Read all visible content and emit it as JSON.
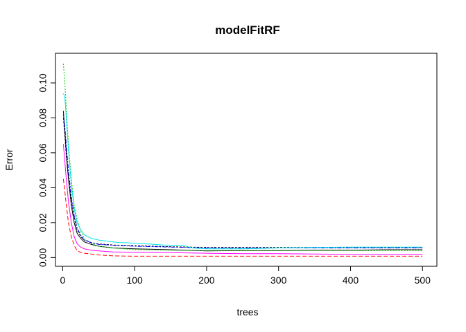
{
  "chart_data": {
    "type": "line",
    "title": "modelFitRF",
    "xlabel": "trees",
    "ylabel": "Error",
    "xlim": [
      -10,
      520
    ],
    "ylim": [
      -0.005,
      0.117
    ],
    "xticks": [
      0,
      100,
      200,
      300,
      400,
      500
    ],
    "yticks": [
      0.0,
      0.02,
      0.04,
      0.06,
      0.08,
      0.1
    ],
    "xtick_labels": [
      "0",
      "100",
      "200",
      "300",
      "400",
      "500"
    ],
    "ytick_labels": [
      "0.00",
      "0.02",
      "0.04",
      "0.06",
      "0.08",
      "0.10"
    ],
    "grid": false,
    "legend": "none",
    "series": [
      {
        "color": "#000000",
        "dash": "",
        "points": [
          [
            1,
            0.084
          ],
          [
            3,
            0.072
          ],
          [
            5,
            0.06
          ],
          [
            8,
            0.045
          ],
          [
            12,
            0.03
          ],
          [
            16,
            0.02
          ],
          [
            20,
            0.014
          ],
          [
            25,
            0.011
          ],
          [
            30,
            0.009
          ],
          [
            40,
            0.0075
          ],
          [
            50,
            0.0065
          ],
          [
            70,
            0.0055
          ],
          [
            100,
            0.005
          ],
          [
            150,
            0.0045
          ],
          [
            200,
            0.0038
          ],
          [
            250,
            0.004
          ],
          [
            300,
            0.004
          ],
          [
            350,
            0.0042
          ],
          [
            400,
            0.0042
          ],
          [
            450,
            0.0045
          ],
          [
            500,
            0.0045
          ]
        ]
      },
      {
        "color": "#000000",
        "dash": "3,2",
        "points": [
          [
            1,
            0.08
          ],
          [
            3,
            0.07
          ],
          [
            5,
            0.058
          ],
          [
            8,
            0.046
          ],
          [
            12,
            0.033
          ],
          [
            16,
            0.023
          ],
          [
            20,
            0.016
          ],
          [
            25,
            0.012
          ],
          [
            30,
            0.01
          ],
          [
            40,
            0.0085
          ],
          [
            50,
            0.0078
          ],
          [
            70,
            0.0072
          ],
          [
            100,
            0.0068
          ],
          [
            150,
            0.0062
          ],
          [
            200,
            0.0058
          ],
          [
            250,
            0.0058
          ],
          [
            300,
            0.0058
          ],
          [
            350,
            0.0058
          ],
          [
            400,
            0.0058
          ],
          [
            450,
            0.0058
          ],
          [
            500,
            0.0058
          ]
        ]
      },
      {
        "color": "#ff0000",
        "dash": "6,3",
        "points": [
          [
            1,
            0.045
          ],
          [
            3,
            0.038
          ],
          [
            5,
            0.03
          ],
          [
            8,
            0.02
          ],
          [
            12,
            0.012
          ],
          [
            16,
            0.007
          ],
          [
            20,
            0.004
          ],
          [
            25,
            0.003
          ],
          [
            30,
            0.0025
          ],
          [
            40,
            0.002
          ],
          [
            50,
            0.0015
          ],
          [
            70,
            0.001
          ],
          [
            100,
            0.0008
          ],
          [
            150,
            0.0008
          ],
          [
            200,
            0.0008
          ],
          [
            250,
            0.0008
          ],
          [
            300,
            0.0008
          ],
          [
            350,
            0.0008
          ],
          [
            400,
            0.0008
          ],
          [
            450,
            0.0008
          ],
          [
            500,
            0.0008
          ]
        ]
      },
      {
        "color": "#00cd00",
        "dash": "2,2",
        "points": [
          [
            1,
            0.111
          ],
          [
            3,
            0.1
          ],
          [
            5,
            0.085
          ],
          [
            8,
            0.065
          ],
          [
            12,
            0.045
          ],
          [
            16,
            0.03
          ],
          [
            20,
            0.022
          ],
          [
            25,
            0.015
          ],
          [
            30,
            0.011
          ],
          [
            40,
            0.008
          ],
          [
            50,
            0.0065
          ],
          [
            70,
            0.0055
          ],
          [
            100,
            0.0045
          ],
          [
            150,
            0.0042
          ],
          [
            200,
            0.004
          ],
          [
            250,
            0.004
          ],
          [
            300,
            0.004
          ],
          [
            350,
            0.004
          ],
          [
            400,
            0.004
          ],
          [
            450,
            0.004
          ],
          [
            500,
            0.004
          ]
        ]
      },
      {
        "color": "#0000ff",
        "dash": "6,2,2,2",
        "points": [
          [
            1,
            0.082
          ],
          [
            3,
            0.075
          ],
          [
            5,
            0.064
          ],
          [
            8,
            0.05
          ],
          [
            12,
            0.035
          ],
          [
            16,
            0.024
          ],
          [
            20,
            0.017
          ],
          [
            25,
            0.013
          ],
          [
            30,
            0.01
          ],
          [
            40,
            0.0085
          ],
          [
            50,
            0.0075
          ],
          [
            70,
            0.007
          ],
          [
            100,
            0.0065
          ],
          [
            150,
            0.006
          ],
          [
            200,
            0.0055
          ],
          [
            250,
            0.0055
          ],
          [
            300,
            0.0055
          ],
          [
            350,
            0.0055
          ],
          [
            400,
            0.0055
          ],
          [
            450,
            0.0055
          ],
          [
            500,
            0.0055
          ]
        ]
      },
      {
        "color": "#00e5e5",
        "dash": "",
        "points": [
          [
            1,
            0.094
          ],
          [
            3,
            0.092
          ],
          [
            5,
            0.08
          ],
          [
            8,
            0.062
          ],
          [
            12,
            0.042
          ],
          [
            16,
            0.028
          ],
          [
            20,
            0.02
          ],
          [
            25,
            0.016
          ],
          [
            30,
            0.013
          ],
          [
            40,
            0.011
          ],
          [
            50,
            0.01
          ],
          [
            60,
            0.0095
          ],
          [
            70,
            0.009
          ],
          [
            80,
            0.0085
          ],
          [
            90,
            0.0085
          ],
          [
            100,
            0.008
          ],
          [
            120,
            0.0078
          ],
          [
            140,
            0.0072
          ],
          [
            160,
            0.007
          ],
          [
            170,
            0.0068
          ],
          [
            180,
            0.0055
          ],
          [
            200,
            0.005
          ],
          [
            250,
            0.005
          ],
          [
            300,
            0.0055
          ],
          [
            350,
            0.0058
          ],
          [
            400,
            0.006
          ],
          [
            450,
            0.006
          ],
          [
            500,
            0.006
          ]
        ]
      },
      {
        "color": "#ff00ff",
        "dash": "",
        "points": [
          [
            1,
            0.065
          ],
          [
            3,
            0.055
          ],
          [
            5,
            0.045
          ],
          [
            8,
            0.032
          ],
          [
            12,
            0.02
          ],
          [
            16,
            0.012
          ],
          [
            20,
            0.008
          ],
          [
            25,
            0.006
          ],
          [
            30,
            0.005
          ],
          [
            40,
            0.0042
          ],
          [
            50,
            0.0038
          ],
          [
            70,
            0.0032
          ],
          [
            100,
            0.003
          ],
          [
            150,
            0.0028
          ],
          [
            200,
            0.0025
          ],
          [
            250,
            0.0022
          ],
          [
            300,
            0.0022
          ],
          [
            350,
            0.002
          ],
          [
            400,
            0.0018
          ],
          [
            450,
            0.0018
          ],
          [
            500,
            0.0018
          ]
        ]
      }
    ]
  }
}
